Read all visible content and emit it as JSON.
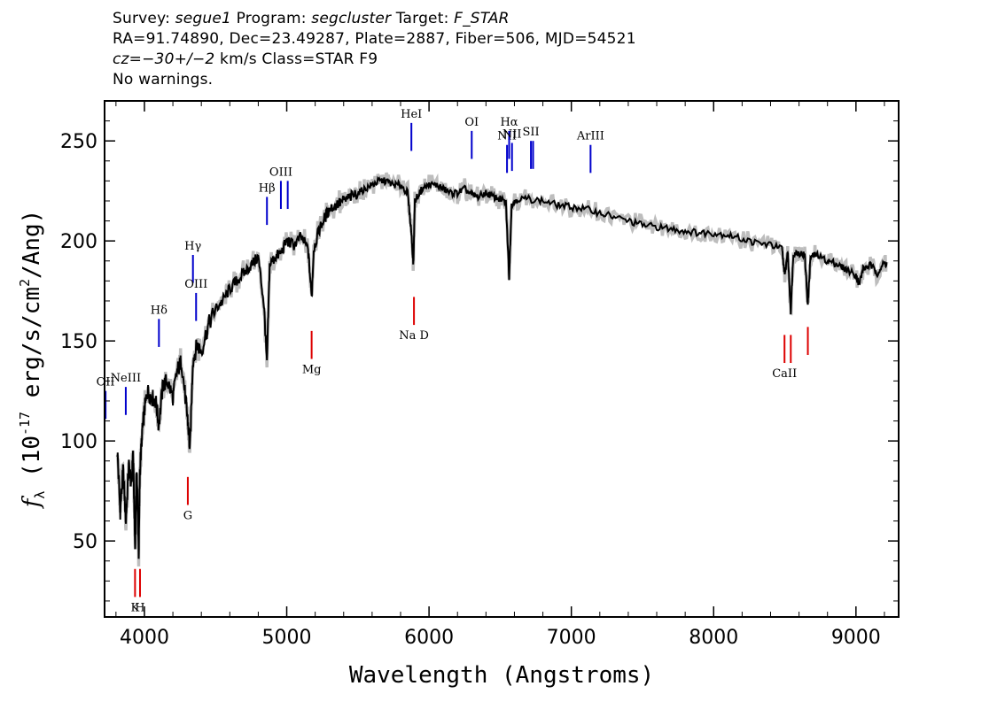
{
  "header": {
    "line1": {
      "survey_label": "Survey: ",
      "survey": "segue1",
      "program_label": " Program: ",
      "program": "segcluster",
      "target_label": " Target: ",
      "target": "F_STAR"
    },
    "line2": "RA=91.74890, Dec=23.49287, Plate=2887, Fiber=506, MJD=54521",
    "line3": {
      "cz": "cz=−30+/−2",
      "rest": " km/s Class=STAR F9"
    },
    "line4": "No warnings."
  },
  "colors": {
    "spectrum": "#000000",
    "error_band": "#bdbdbd",
    "emission_marker": "#0000cc",
    "absorption_marker": "#dd0000"
  },
  "chart_data": {
    "type": "line",
    "xlabel": "Wavelength (Angstroms)",
    "ylabel": "f_λ (10^-17 erg/s/cm^2/Ang)",
    "xlim": [
      3720,
      9300
    ],
    "ylim": [
      12,
      270
    ],
    "xticks": [
      4000,
      5000,
      6000,
      7000,
      8000,
      9000
    ],
    "yticks": [
      50,
      100,
      150,
      200,
      250
    ],
    "grid": false,
    "series": [
      {
        "x": [
          3810,
          3830,
          3850,
          3870,
          3890,
          3910,
          3920,
          3935,
          3945,
          3960,
          3968,
          3985,
          4000,
          4020,
          4050,
          4080,
          4101,
          4130,
          4160,
          4200,
          4230,
          4260,
          4290,
          4305,
          4320,
          4340,
          4370,
          4400,
          4450,
          4500,
          4550,
          4600,
          4650,
          4700,
          4750,
          4800,
          4840,
          4861,
          4880,
          4920,
          4960,
          5000,
          5050,
          5100,
          5150,
          5175,
          5190,
          5230,
          5270,
          5300,
          5350,
          5400,
          5450,
          5500,
          5550,
          5600,
          5650,
          5700,
          5750,
          5800,
          5850,
          5875,
          5890,
          5900,
          5950,
          6000,
          6050,
          6100,
          6150,
          6200,
          6250,
          6300,
          6350,
          6400,
          6450,
          6500,
          6540,
          6563,
          6580,
          6620,
          6700,
          6800,
          6900,
          7000,
          7100,
          7200,
          7300,
          7400,
          7500,
          7600,
          7700,
          7800,
          7900,
          8000,
          8100,
          8200,
          8300,
          8400,
          8480,
          8500,
          8520,
          8542,
          8560,
          8600,
          8640,
          8662,
          8680,
          8720,
          8800,
          8850,
          8900,
          8950,
          9000,
          9020,
          9050,
          9100,
          9150,
          9200,
          9220
        ],
        "y": [
          95,
          65,
          85,
          60,
          88,
          78,
          95,
          45,
          88,
          44,
          85,
          105,
          115,
          125,
          122,
          120,
          108,
          128,
          130,
          122,
          135,
          140,
          120,
          110,
          95,
          140,
          148,
          145,
          158,
          166,
          170,
          176,
          180,
          184,
          188,
          192,
          168,
          138,
          188,
          192,
          194,
          200,
          198,
          202,
          196,
          172,
          196,
          206,
          212,
          216,
          218,
          220,
          222,
          224,
          226,
          228,
          230,
          230,
          228,
          228,
          224,
          205,
          188,
          220,
          226,
          228,
          228,
          226,
          224,
          224,
          226,
          223,
          222,
          224,
          222,
          221,
          219,
          182,
          218,
          221,
          221,
          220,
          218,
          217,
          216,
          214,
          212,
          210,
          208,
          207,
          206,
          205,
          204,
          204,
          203,
          201,
          199,
          198,
          196,
          182,
          195,
          165,
          194,
          194,
          193,
          168,
          192,
          193,
          190,
          189,
          187,
          185,
          183,
          178,
          186,
          188,
          184,
          189,
          188
        ]
      },
      {
        "x": [
          3810,
          3860,
          3935,
          3968,
          4101,
          4305,
          4340,
          4861,
          5175,
          5890,
          6563,
          8498,
          8542,
          8662
        ],
        "y": [
          86,
          87,
          72,
          76,
          118,
          112,
          147,
          160,
          171,
          204,
          196,
          187,
          178,
          174
        ]
      }
    ],
    "annotations": [
      {
        "x": 3727,
        "label": "OII",
        "kind": "emission",
        "y": 118
      },
      {
        "x": 3869,
        "label": "NeIII",
        "kind": "emission",
        "y": 120
      },
      {
        "x": 4102,
        "label": "Hδ",
        "kind": "emission",
        "y": 154
      },
      {
        "x": 4341,
        "label": "Hγ",
        "kind": "emission",
        "y": 186
      },
      {
        "x": 4363,
        "label": "OIII",
        "kind": "emission",
        "y": 167
      },
      {
        "x": 4861,
        "label": "Hβ",
        "kind": "emission",
        "y": 215
      },
      {
        "x": 4959,
        "label": "OIII",
        "kind": "emission",
        "y": 223
      },
      {
        "x": 5007,
        "label": "",
        "kind": "emission",
        "y": 223
      },
      {
        "x": 5876,
        "label": "HeI",
        "kind": "emission",
        "y": 252
      },
      {
        "x": 6300,
        "label": "OI",
        "kind": "emission",
        "y": 248
      },
      {
        "x": 6548,
        "label": "NII",
        "kind": "emission",
        "y": 241
      },
      {
        "x": 6563,
        "label": "Hα",
        "kind": "emission",
        "y": 248
      },
      {
        "x": 6583,
        "label": "NII",
        "kind": "emission",
        "y": 242
      },
      {
        "x": 6716,
        "label": "SII",
        "kind": "emission",
        "y": 243
      },
      {
        "x": 6731,
        "label": "",
        "kind": "emission",
        "y": 243
      },
      {
        "x": 7135,
        "label": "ArIII",
        "kind": "emission",
        "y": 241
      },
      {
        "x": 3934,
        "label": "K",
        "kind": "absorption",
        "y": 29
      },
      {
        "x": 3969,
        "label": "H",
        "kind": "absorption",
        "y": 29
      },
      {
        "x": 4305,
        "label": "G",
        "kind": "absorption",
        "y": 75
      },
      {
        "x": 5175,
        "label": "Mg",
        "kind": "absorption",
        "y": 148
      },
      {
        "x": 5894,
        "label": "Na D",
        "kind": "absorption",
        "y": 165
      },
      {
        "x": 8498,
        "label": "CaII",
        "kind": "absorption",
        "y": 146
      },
      {
        "x": 8542,
        "label": "",
        "kind": "absorption",
        "y": 146
      },
      {
        "x": 8662,
        "label": "",
        "kind": "absorption",
        "y": 150
      }
    ]
  }
}
